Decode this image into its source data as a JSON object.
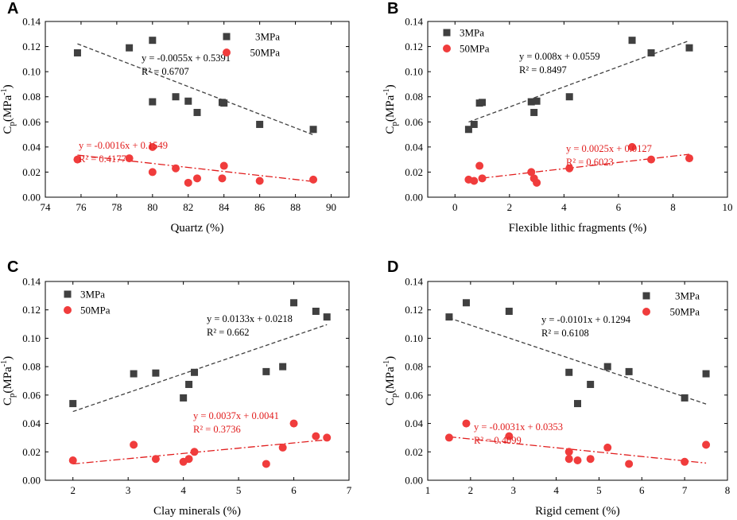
{
  "colors": {
    "series_3mpa": "#404040",
    "series_50mpa": "#f03c3c",
    "fit_3mpa": "#404040",
    "fit_50mpa": "#e11d1d"
  },
  "chart_data": [
    {
      "type": "scatter",
      "panel": "A",
      "xlabel": "Quartz (%)",
      "ylabel": "Cp(MPa-1)",
      "xlim": [
        74,
        91
      ],
      "ylim": [
        0,
        0.14
      ],
      "xticks": [
        74,
        76,
        78,
        80,
        82,
        84,
        86,
        88,
        90
      ],
      "xtick_labels": [
        "74",
        "76",
        "78",
        "80",
        "82",
        "84",
        "86",
        "88",
        "90"
      ],
      "legend_position": "top-right",
      "series": [
        {
          "name": "3MPa",
          "marker": "square",
          "x": [
            75.8,
            78.7,
            80,
            80,
            81.3,
            82,
            82.5,
            83.9,
            84,
            86,
            89
          ],
          "y": [
            0.115,
            0.119,
            0.125,
            0.076,
            0.08,
            0.0765,
            0.0675,
            0.0755,
            0.075,
            0.058,
            0.054
          ],
          "fit": {
            "x": [
              75.8,
              89
            ],
            "y": [
              0.1222,
              0.0497
            ],
            "equation": "y = -0.0055x + 0.5391",
            "r2": "R² = 0.6707"
          }
        },
        {
          "name": "50MPa",
          "marker": "circle",
          "x": [
            75.8,
            78.7,
            80,
            80,
            81.3,
            82,
            82.5,
            83.9,
            84,
            86,
            89
          ],
          "y": [
            0.03,
            0.031,
            0.04,
            0.02,
            0.023,
            0.0115,
            0.015,
            0.015,
            0.025,
            0.013,
            0.014
          ],
          "fit": {
            "x": [
              75.8,
              89
            ],
            "y": [
              0.0336,
              0.0125
            ],
            "equation": "y = -0.0016x + 0.1549",
            "r2": "R² = 0.4177"
          }
        }
      ]
    },
    {
      "type": "scatter",
      "panel": "B",
      "xlabel": "Flexible lithic fragments (%)",
      "ylabel": "Cp(MPa-1)",
      "xlim": [
        -1,
        10
      ],
      "ylim": [
        0,
        0.14
      ],
      "xticks": [
        0,
        2,
        4,
        6,
        8,
        10
      ],
      "xtick_labels": [
        "0",
        "2",
        "4",
        "6",
        "8",
        "10"
      ],
      "legend_position": "top-left",
      "series": [
        {
          "name": "3MPa",
          "marker": "square",
          "x": [
            0.5,
            0.7,
            0.9,
            1.0,
            2.8,
            2.9,
            3.0,
            4.2,
            6.5,
            7.2,
            8.6
          ],
          "y": [
            0.054,
            0.058,
            0.075,
            0.0755,
            0.076,
            0.0675,
            0.0765,
            0.08,
            0.125,
            0.115,
            0.119
          ],
          "fit": {
            "x": [
              0.5,
              8.6
            ],
            "y": [
              0.0599,
              0.1247
            ],
            "equation": "y = 0.008x + 0.0559",
            "r2": "R² = 0.8497"
          }
        },
        {
          "name": "50MPa",
          "marker": "circle",
          "x": [
            0.5,
            0.7,
            0.9,
            1.0,
            2.8,
            2.9,
            3.0,
            4.2,
            6.5,
            7.2,
            8.6
          ],
          "y": [
            0.014,
            0.013,
            0.025,
            0.015,
            0.02,
            0.015,
            0.0115,
            0.023,
            0.04,
            0.03,
            0.031
          ],
          "fit": {
            "x": [
              1.0,
              8.6
            ],
            "y": [
              0.0152,
              0.0342
            ],
            "equation": "y = 0.0025x + 0.0127",
            "r2": "R² = 0.6023"
          }
        }
      ]
    },
    {
      "type": "scatter",
      "panel": "C",
      "xlabel": "Clay minerals (%)",
      "ylabel": "Cp(MPa-1)",
      "xlim": [
        1.5,
        7
      ],
      "ylim": [
        0,
        0.14
      ],
      "xticks": [
        2,
        3,
        4,
        5,
        6,
        7
      ],
      "xtick_labels": [
        "2",
        "3",
        "4",
        "5",
        "6",
        "7"
      ],
      "legend_position": "top-left",
      "series": [
        {
          "name": "3MPa",
          "marker": "square",
          "x": [
            2.0,
            3.1,
            3.5,
            4.0,
            4.1,
            4.2,
            5.5,
            5.8,
            6.0,
            6.4,
            6.6
          ],
          "y": [
            0.054,
            0.075,
            0.0755,
            0.058,
            0.0675,
            0.076,
            0.0765,
            0.08,
            0.125,
            0.119,
            0.115
          ],
          "fit": {
            "x": [
              2.0,
              6.6
            ],
            "y": [
              0.0484,
              0.1096
            ],
            "equation": "y = 0.0133x + 0.0218",
            "r2": "R² = 0.662"
          }
        },
        {
          "name": "50MPa",
          "marker": "circle",
          "x": [
            2.0,
            3.1,
            3.5,
            4.0,
            4.1,
            4.2,
            5.5,
            5.8,
            6.0,
            6.4,
            6.6
          ],
          "y": [
            0.014,
            0.025,
            0.015,
            0.013,
            0.015,
            0.02,
            0.0115,
            0.023,
            0.04,
            0.031,
            0.03
          ],
          "fit": {
            "x": [
              2.0,
              6.6
            ],
            "y": [
              0.0115,
              0.0285
            ],
            "equation": "y = 0.0037x + 0.0041",
            "r2": "R² = 0.3736"
          }
        }
      ]
    },
    {
      "type": "scatter",
      "panel": "D",
      "xlabel": "Rigid cement (%)",
      "ylabel": "Cp(MPa-1)",
      "xlim": [
        1,
        8
      ],
      "ylim": [
        0,
        0.14
      ],
      "xticks": [
        1,
        2,
        3,
        4,
        5,
        6,
        7,
        8
      ],
      "xtick_labels": [
        "1",
        "2",
        "3",
        "4",
        "5",
        "6",
        "7",
        "8"
      ],
      "legend_position": "top-right",
      "series": [
        {
          "name": "3MPa",
          "marker": "square",
          "x": [
            1.5,
            1.9,
            2.9,
            4.3,
            4.5,
            4.8,
            5.2,
            5.7,
            7.0,
            7.5
          ],
          "y": [
            0.115,
            0.125,
            0.119,
            0.076,
            0.054,
            0.0675,
            0.08,
            0.0765,
            0.058,
            0.075
          ],
          "fit": {
            "x": [
              1.5,
              7.5
            ],
            "y": [
              0.1143,
              0.0537
            ],
            "equation": "y = -0.0101x + 0.1294",
            "r2": "R² = 0.6108"
          }
        },
        {
          "name": "50MPa",
          "marker": "circle",
          "x": [
            1.5,
            1.9,
            2.9,
            4.3,
            4.3,
            4.5,
            4.8,
            5.2,
            5.7,
            7.0,
            7.5
          ],
          "y": [
            0.03,
            0.04,
            0.031,
            0.02,
            0.015,
            0.014,
            0.015,
            0.023,
            0.0115,
            0.013,
            0.025
          ],
          "fit": {
            "x": [
              1.5,
              7.5
            ],
            "y": [
              0.0306,
              0.0121
            ],
            "equation": "y = -0.0031x + 0.0353",
            "r2": "R² = 0.4099"
          }
        }
      ]
    }
  ],
  "yticks": [
    0,
    0.02,
    0.04,
    0.06,
    0.08,
    0.1,
    0.12,
    0.14
  ],
  "ytick_labels": [
    "0.00",
    "0.02",
    "0.04",
    "0.06",
    "0.08",
    "0.10",
    "0.12",
    "0.14"
  ]
}
